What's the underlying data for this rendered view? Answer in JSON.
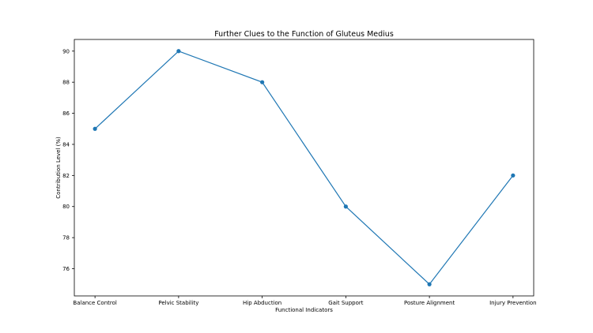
{
  "chart_data": {
    "type": "line",
    "title": "Further Clues to the Function of Gluteus Medius",
    "xlabel": "Functional Indicators",
    "ylabel": "Contribution Level (%)",
    "categories": [
      "Balance Control",
      "Pelvic Stability",
      "Hip Abduction",
      "Gait Support",
      "Posture Alignment",
      "Injury Prevention"
    ],
    "values": [
      85,
      90,
      88,
      80,
      75,
      82
    ],
    "yticks": [
      76,
      78,
      80,
      82,
      84,
      86,
      88,
      90
    ],
    "ylim": [
      74.25,
      90.75
    ],
    "grid": false,
    "legend": null,
    "line_color": "#1f77b4",
    "marker": "circle"
  }
}
